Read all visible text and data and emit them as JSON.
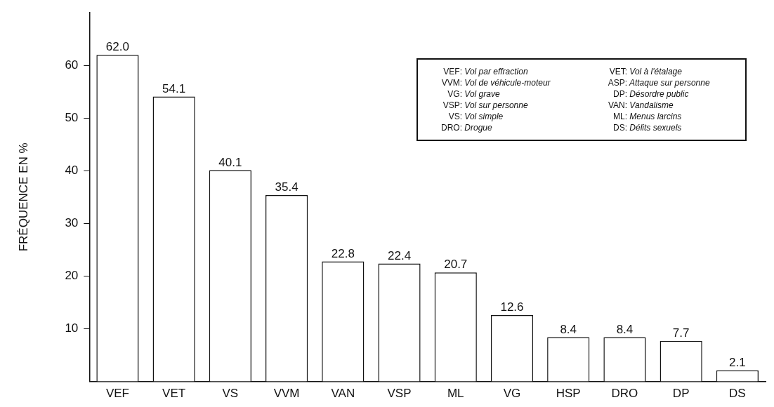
{
  "chart_data": {
    "type": "bar",
    "ylabel": "FRÉQUENCE EN %",
    "categories": [
      "VEF",
      "VET",
      "VS",
      "VVM",
      "VAN",
      "VSP",
      "ML",
      "VG",
      "HSP",
      "DRO",
      "DP",
      "DS"
    ],
    "values": [
      62.0,
      54.1,
      40.1,
      35.4,
      22.8,
      22.4,
      20.7,
      12.6,
      8.4,
      8.4,
      7.7,
      2.1
    ],
    "color": "#ffffff",
    "value_labels": [
      "62.0",
      "54.1",
      "40.1",
      "35.4",
      "22.8",
      "22.4",
      "20.7",
      "12.6",
      "8.4",
      "8.4",
      "7.7",
      "2.1"
    ],
    "ylim": [
      0,
      70
    ],
    "yticks": [
      10,
      20,
      30,
      40,
      50,
      60
    ],
    "grid": false,
    "legend": false,
    "annotations": [
      "VEF: Vol par effraction",
      "VET: Vol à l'étalage",
      "VVM: Vol de véhicule-moteur",
      "ASP: Attaque sur personne",
      "VG: Vol grave",
      "DP: Désordre public",
      "VSP: Vol sur personne",
      "VAN: Vandalisme",
      "VS: Vol simple",
      "ML: Menus larcins",
      "DRO: Drogue",
      "DS: Délits sexuels"
    ]
  }
}
